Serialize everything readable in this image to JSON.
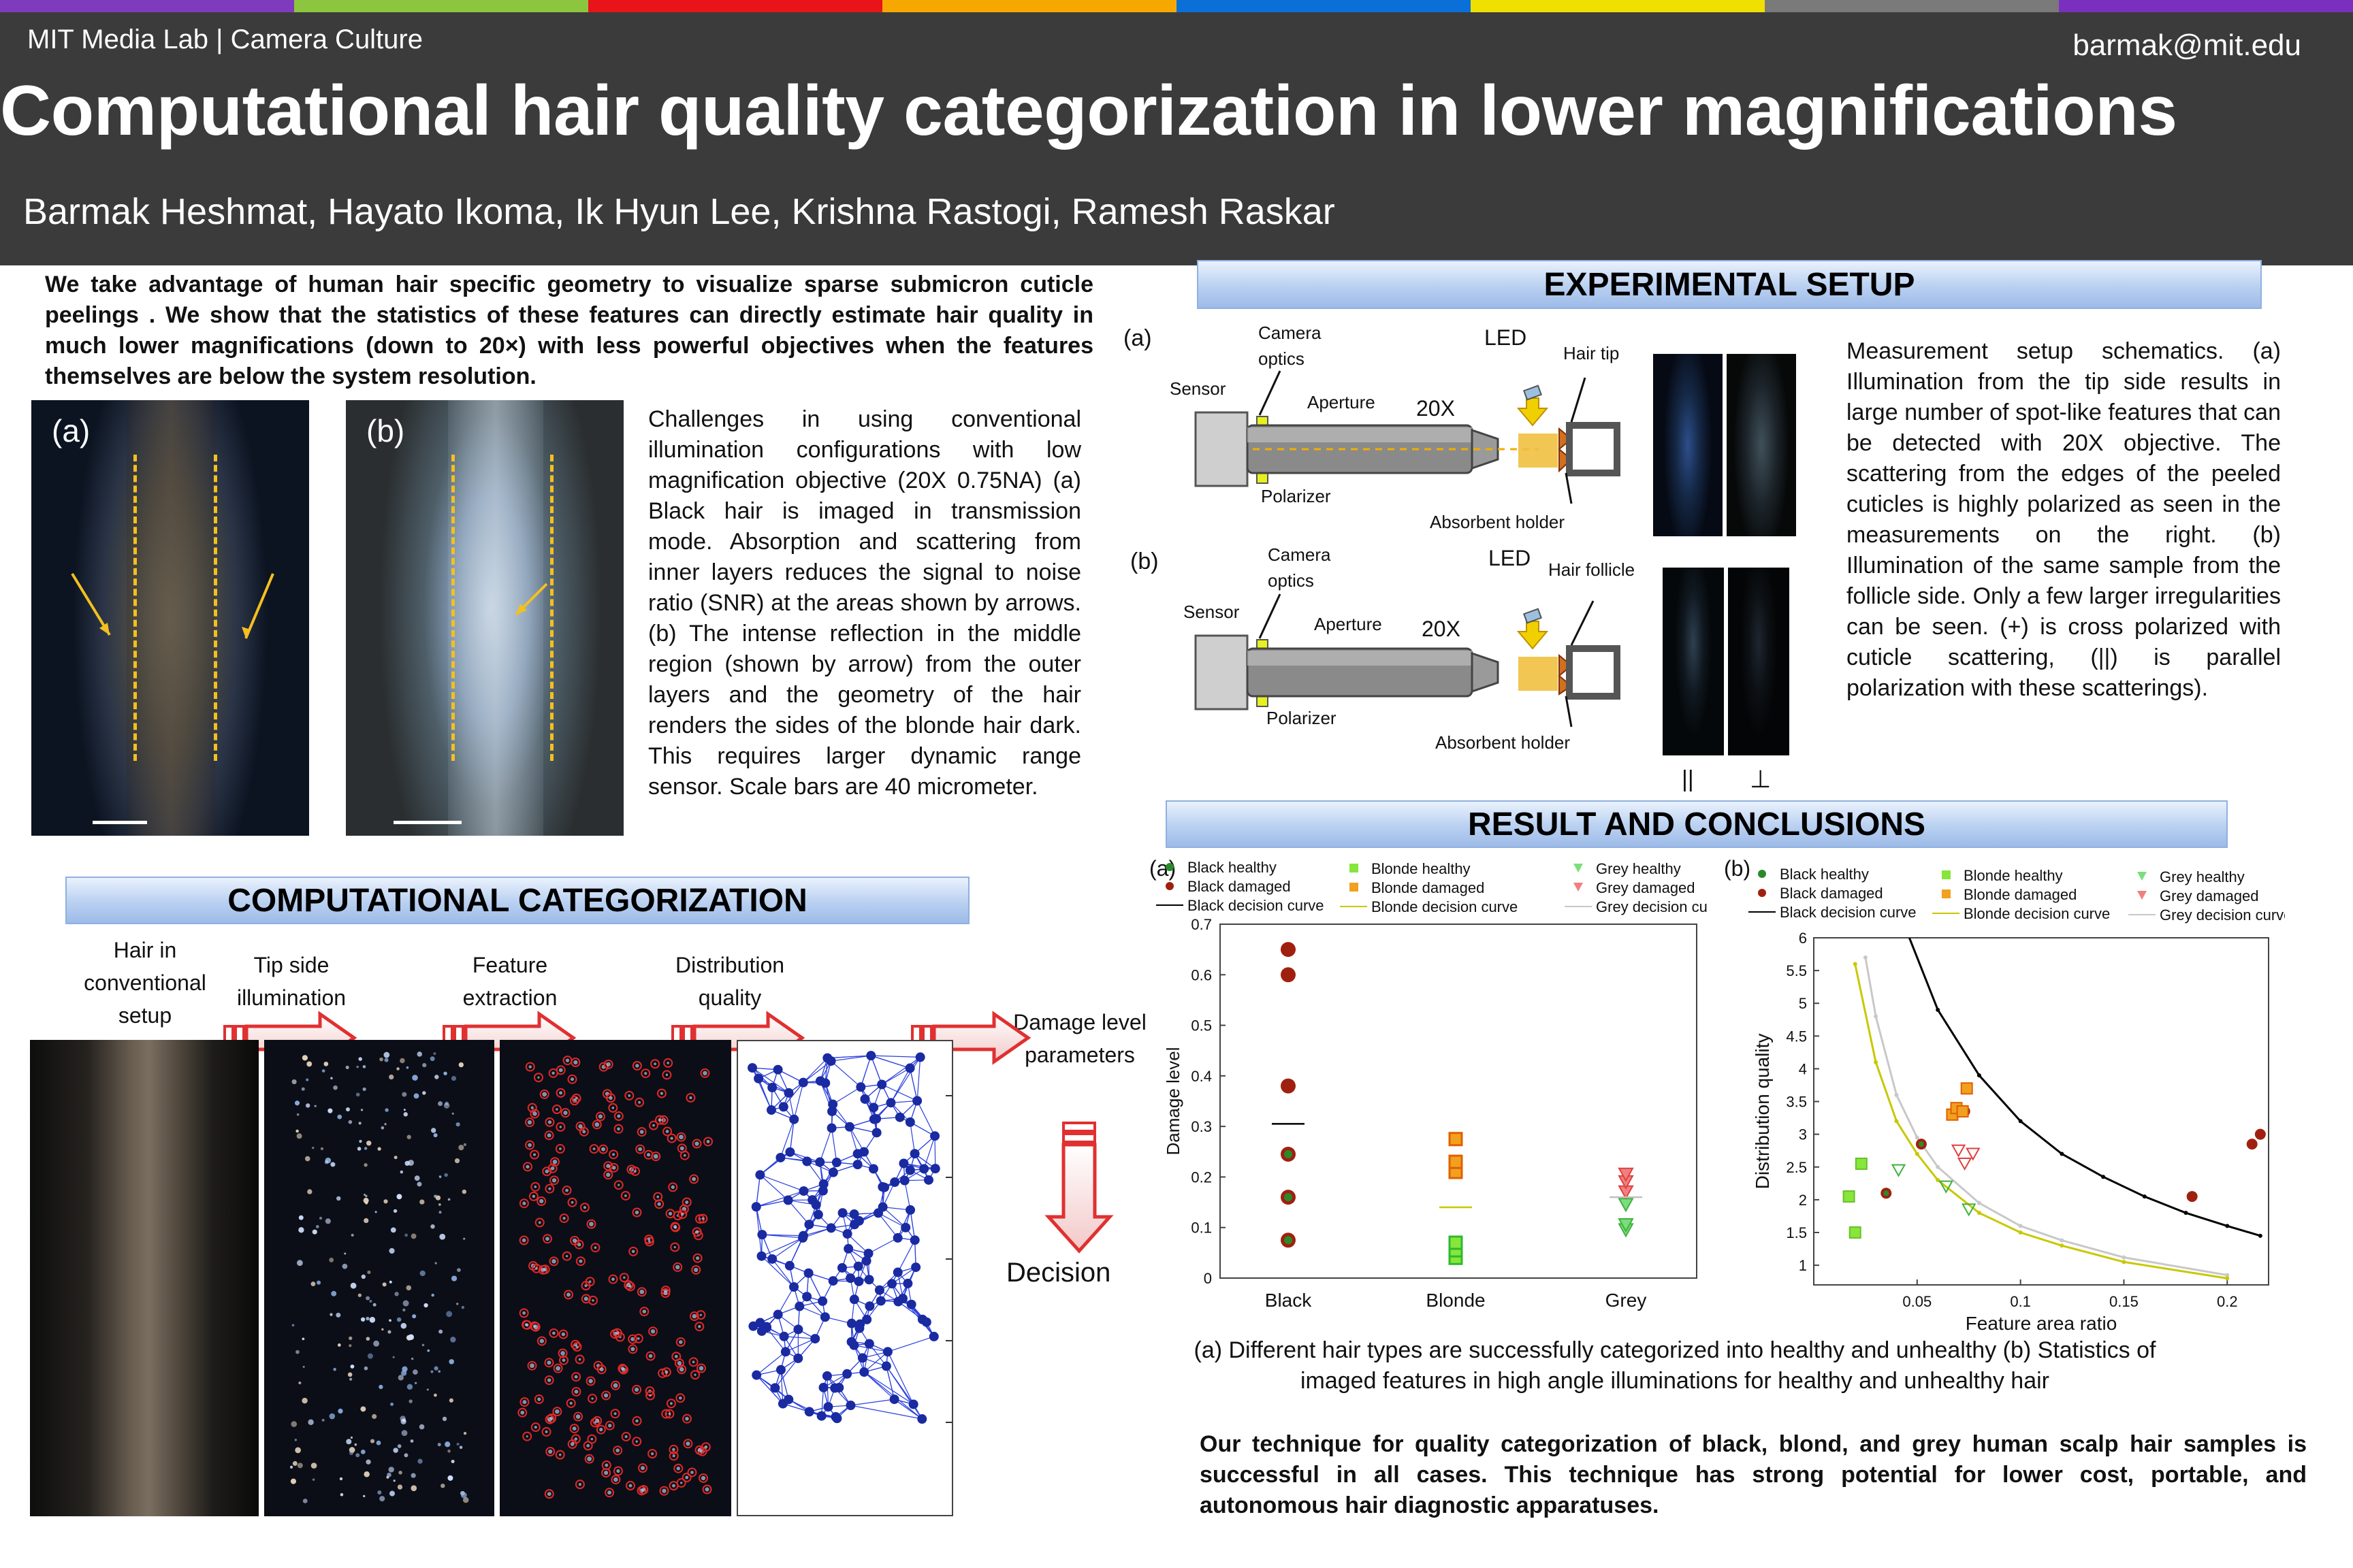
{
  "header": {
    "lab": "MIT Media Lab | Camera Culture",
    "email": "barmak@mit.edu",
    "title": "Computational hair quality categorization in lower magnifications",
    "authors": "Barmak Heshmat, Hayato Ikoma, Ik Hyun Lee, Krishna Rastogi, Ramesh Raskar",
    "color_bar": [
      "#7e3bbd",
      "#8cc63f",
      "#e8141a",
      "#f7a800",
      "#0a6fd6",
      "#f0e000",
      "#7a7a7a",
      "#7b2fbf"
    ]
  },
  "abstract": "We take advantage of human hair specific geometry to visualize sparse submicron cuticle peelings . We show that the statistics of these features can directly estimate hair quality in much lower magnifications (down to 20×) with less powerful objectives when the features themselves are below the system resolution.",
  "intro_figure": {
    "label_a": "(a)",
    "label_b": "(b)",
    "caption": "Challenges in using conventional illumination configurations with low magnification objective (20X 0.75NA) (a) Black hair is imaged in transmission mode. Absorption and scattering from inner layers reduces the signal to noise ratio (SNR) at the areas shown by arrows. (b) The intense reflection in the middle region (shown by arrow) from the outer layers and the geometry of the hair renders the sides of the blonde hair dark. This requires larger dynamic range sensor. Scale bars are 40 micrometer."
  },
  "sections": {
    "computational": "COMPUTATIONAL CATEGORIZATION",
    "setup": "EXPERIMENTAL SETUP",
    "results": "RESULT AND CONCLUSIONS"
  },
  "pipeline": {
    "step1": "Hair in conventional setup",
    "step2": "Tip side illumination",
    "step3": "Feature extraction",
    "step4": "Distribution quality",
    "step5": "Damage level parameters",
    "decision": "Decision"
  },
  "setup": {
    "label_a": "(a)",
    "label_b": "(b)",
    "sensor": "Sensor",
    "camera_optics": "Camera optics",
    "aperture": "Aperture",
    "mag": "20X",
    "led": "LED",
    "hair_tip": "Hair tip",
    "hair_follicle": "Hair follicle",
    "polarizer": "Polarizer",
    "absorbent_holder": "Absorbent holder",
    "parallel_symbol": "||",
    "perp_symbol": "⊥",
    "caption": "Measurement setup schematics. (a) Illumination from the tip side results in large number of spot-like features that can be detected with 20X objective. The scattering from the edges of the peeled cuticles is highly polarized as seen in the measurements on the right. (b) Illumination of the same sample from the follicle side. Only a few larger irregularities can be seen. (+) is cross polarized with cuticle scattering, (||) is parallel polarization with these scatterings)."
  },
  "results": {
    "caption": "(a) Different hair types are successfully categorized into healthy and unhealthy (b) Statistics of imaged features in high angle illuminations for healthy and unhealthy hair",
    "conclusion": "Our technique for quality categorization of black, blond, and grey human scalp hair samples is successful in all cases. This technique has strong potential for lower cost, portable, and autonomous hair diagnostic apparatuses."
  },
  "colors": {
    "black": "#a02010",
    "black_healthy_fill": "#2a8a2a",
    "blonde_healthy": "#86e63a",
    "blonde_damaged": "#f2a020",
    "grey_healthy": "#7adf7a",
    "grey_damaged": "#f08080",
    "blonde_curve": "#c8c800",
    "grey_curve": "#c8c8c8"
  },
  "chart_data": [
    {
      "type": "scatter",
      "panel_label": "(a)",
      "xlabel": "",
      "ylabel": "Damage level",
      "categories": [
        "Black",
        "Blonde",
        "Grey"
      ],
      "ylim": [
        0,
        0.7
      ],
      "yticks": [
        0,
        0.1,
        0.2,
        0.3,
        0.4,
        0.5,
        0.6,
        0.7
      ],
      "series": [
        {
          "name": "Black healthy",
          "x": [
            "Black",
            "Black",
            "Black"
          ],
          "y": [
            0.075,
            0.16,
            0.245
          ]
        },
        {
          "name": "Black damaged",
          "x": [
            "Black",
            "Black",
            "Black"
          ],
          "y": [
            0.38,
            0.6,
            0.65
          ]
        },
        {
          "name": "Black decision curve",
          "x": [
            "Black"
          ],
          "y": [
            0.305
          ]
        },
        {
          "name": "Blonde healthy",
          "x": [
            "Blonde",
            "Blonde",
            "Blonde"
          ],
          "y": [
            0.04,
            0.055,
            0.07
          ]
        },
        {
          "name": "Blonde damaged",
          "x": [
            "Blonde",
            "Blonde",
            "Blonde"
          ],
          "y": [
            0.21,
            0.23,
            0.275
          ]
        },
        {
          "name": "Blonde decision curve",
          "x": [
            "Blonde"
          ],
          "y": [
            0.14
          ]
        },
        {
          "name": "Grey healthy",
          "x": [
            "Grey",
            "Grey",
            "Grey"
          ],
          "y": [
            0.095,
            0.105,
            0.145
          ]
        },
        {
          "name": "Grey damaged",
          "x": [
            "Grey",
            "Grey",
            "Grey"
          ],
          "y": [
            0.17,
            0.19,
            0.205
          ]
        },
        {
          "name": "Grey decision cu",
          "x": [
            "Grey"
          ],
          "y": [
            0.16
          ]
        }
      ]
    },
    {
      "type": "scatter",
      "panel_label": "(b)",
      "xlabel": "Feature area ratio",
      "ylabel": "Distribution quality",
      "xlim": [
        0.0,
        0.22
      ],
      "ylim": [
        0.7,
        6
      ],
      "xticks": [
        0.05,
        0.1,
        0.15,
        0.2
      ],
      "yticks": [
        1,
        1.5,
        2,
        2.5,
        3,
        3.5,
        4,
        4.5,
        5,
        5.5,
        6
      ],
      "series": [
        {
          "name": "Black healthy",
          "x": [
            0.035,
            0.052,
            0.073
          ],
          "y": [
            2.1,
            2.85,
            3.35
          ]
        },
        {
          "name": "Black damaged",
          "x": [
            0.183,
            0.212,
            0.216
          ],
          "y": [
            2.05,
            2.85,
            3.0
          ]
        },
        {
          "name": "Black decision curve",
          "x": [
            0.045,
            0.06,
            0.08,
            0.1,
            0.12,
            0.14,
            0.16,
            0.18,
            0.2,
            0.216
          ],
          "y": [
            6.1,
            4.9,
            3.9,
            3.2,
            2.7,
            2.35,
            2.05,
            1.8,
            1.6,
            1.45
          ]
        },
        {
          "name": "Blonde healthy",
          "x": [
            0.017,
            0.02,
            0.023
          ],
          "y": [
            2.05,
            1.5,
            2.55
          ]
        },
        {
          "name": "Blonde damaged",
          "x": [
            0.067,
            0.069,
            0.072,
            0.074
          ],
          "y": [
            3.3,
            3.4,
            3.35,
            3.7
          ]
        },
        {
          "name": "Blonde decision curve",
          "x": [
            0.02,
            0.03,
            0.04,
            0.05,
            0.06,
            0.08,
            0.1,
            0.12,
            0.15,
            0.2
          ],
          "y": [
            5.6,
            4.1,
            3.2,
            2.7,
            2.3,
            1.8,
            1.5,
            1.3,
            1.05,
            0.8
          ]
        },
        {
          "name": "Grey healthy",
          "x": [
            0.041,
            0.064,
            0.075
          ],
          "y": [
            2.45,
            2.2,
            1.85
          ]
        },
        {
          "name": "Grey damaged",
          "x": [
            0.07,
            0.073,
            0.077
          ],
          "y": [
            2.75,
            2.55,
            2.7
          ]
        },
        {
          "name": "Grey decision curve",
          "x": [
            0.025,
            0.03,
            0.04,
            0.05,
            0.06,
            0.08,
            0.1,
            0.12,
            0.15,
            0.2
          ],
          "y": [
            5.7,
            4.8,
            3.6,
            2.95,
            2.5,
            1.95,
            1.6,
            1.38,
            1.12,
            0.85
          ]
        }
      ]
    }
  ]
}
